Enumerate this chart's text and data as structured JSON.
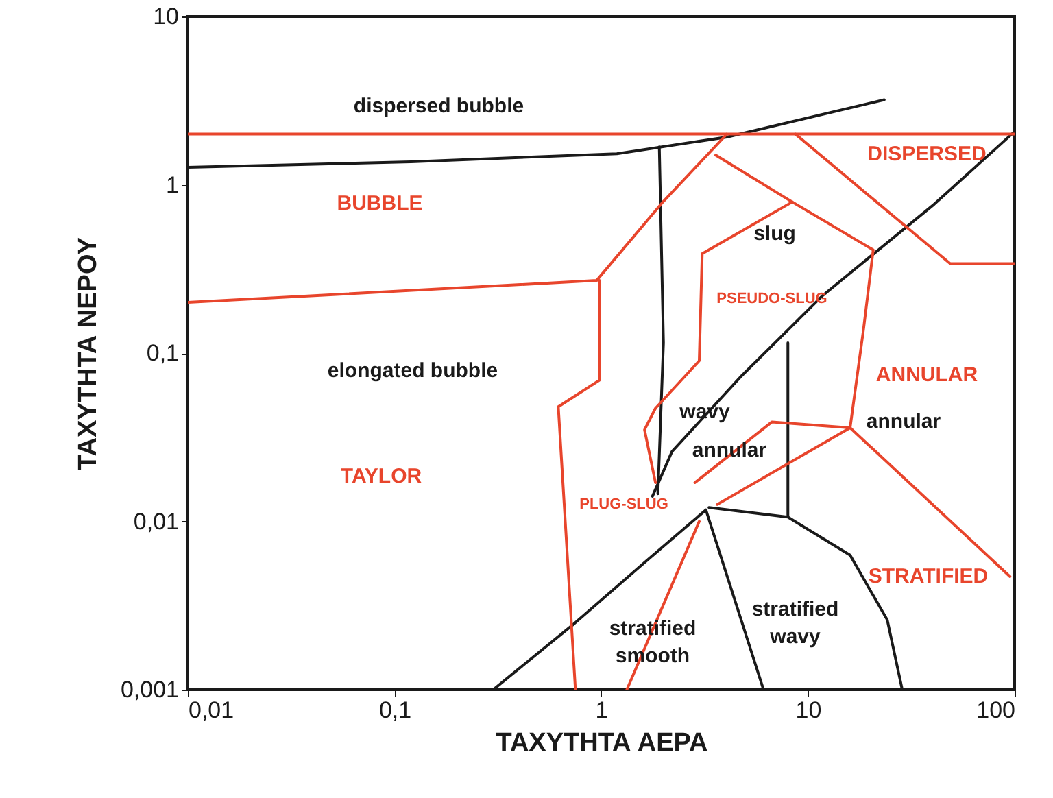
{
  "chart_data": {
    "type": "line",
    "xlabel": "ΤΑΧΥΤΗΤΑ ΑΕΡΑ",
    "ylabel": "ΤΑΧΥΤΗΤΑ ΝΕΡΟΥ",
    "log": "xy",
    "grid": false,
    "marker": "none",
    "line_style": "solid",
    "xlim": [
      0.01,
      100
    ],
    "ylim": [
      0.001,
      10
    ],
    "xticks": [
      {
        "value": 0.01,
        "label": "0,01"
      },
      {
        "value": 0.1,
        "label": "0,1"
      },
      1,
      10,
      100
    ],
    "yticks": [
      {
        "value": 0.001,
        "label": "0,001"
      },
      {
        "value": 0.01,
        "label": "0,01"
      },
      {
        "value": 0.1,
        "label": "0,1"
      },
      1,
      10
    ],
    "series": [
      {
        "color": "#1a1a1a",
        "x": [
          0.01,
          0.12,
          1.19,
          4.05,
          23.4
        ],
        "values": [
          1.27,
          1.37,
          1.53,
          1.92,
          3.2
        ]
      },
      {
        "color": "#1a1a1a",
        "x": [
          1.91,
          2.0,
          1.88
        ],
        "values": [
          1.68,
          0.115,
          0.0146
        ]
      },
      {
        "color": "#1a1a1a",
        "x": [
          1.77,
          2.2,
          4.71,
          11.8,
          40,
          100
        ],
        "values": [
          0.0141,
          0.026,
          0.072,
          0.22,
          0.75,
          2.07
        ]
      },
      {
        "color": "#1a1a1a",
        "x": [
          8.0,
          8.0
        ],
        "values": [
          0.115,
          0.0106
        ]
      },
      {
        "color": "#1a1a1a",
        "x": [
          3.32,
          8.0,
          16,
          24.2,
          28.6
        ],
        "values": [
          0.0121,
          0.0106,
          0.0063,
          0.0026,
          0.001
        ]
      },
      {
        "color": "#1a1a1a",
        "x": [
          3.21,
          6.1
        ],
        "values": [
          0.0117,
          0.001
        ]
      },
      {
        "color": "#1a1a1a",
        "x": [
          0.3,
          0.72,
          1.62,
          3.21
        ],
        "values": [
          0.001,
          0.0024,
          0.0057,
          0.0117
        ]
      },
      {
        "color": "#e8452c",
        "x": [
          0.01,
          100
        ],
        "values": [
          2.0,
          2.0
        ]
      },
      {
        "color": "#e8452c",
        "x": [
          0.01,
          0.95,
          1.97,
          4.05
        ],
        "values": [
          0.2,
          0.27,
          0.78,
          2.0
        ]
      },
      {
        "color": "#e8452c",
        "x": [
          0.98,
          0.98,
          0.62,
          0.75
        ],
        "values": [
          0.27,
          0.069,
          0.048,
          0.001
        ]
      },
      {
        "color": "#e8452c",
        "x": [
          3.58,
          8.4,
          20.7,
          18.6,
          16
        ],
        "values": [
          1.5,
          0.79,
          0.41,
          0.14,
          0.036
        ]
      },
      {
        "color": "#e8452c",
        "x": [
          8.7,
          48.8,
          100
        ],
        "values": [
          2.0,
          0.34,
          0.34
        ]
      },
      {
        "color": "#e8452c",
        "x": [
          8.4,
          3.08,
          2.98,
          1.83,
          1.62,
          1.83
        ],
        "values": [
          0.79,
          0.39,
          0.09,
          0.047,
          0.035,
          0.017
        ]
      },
      {
        "color": "#e8452c",
        "x": [
          2.84,
          6.7,
          16
        ],
        "values": [
          0.017,
          0.039,
          0.036
        ]
      },
      {
        "color": "#e8452c",
        "x": [
          3.64,
          16
        ],
        "values": [
          0.0126,
          0.036
        ]
      },
      {
        "color": "#e8452c",
        "x": [
          16,
          95
        ],
        "values": [
          0.036,
          0.0047
        ]
      },
      {
        "color": "#e8452c",
        "x": [
          2.98,
          1.33
        ],
        "values": [
          0.01,
          0.001
        ]
      }
    ],
    "annotations": [
      "dispersed bubble",
      "BUBBLE",
      "DISPERSED",
      "slug",
      "PSEUDO-SLUG",
      "elongated bubble",
      "ANNULAR",
      "wavy",
      "annular",
      "annular",
      "TAYLOR",
      "PLUG-SLUG",
      "STRATIFIED",
      "stratified",
      "wavy",
      "stratified",
      "smooth"
    ]
  }
}
